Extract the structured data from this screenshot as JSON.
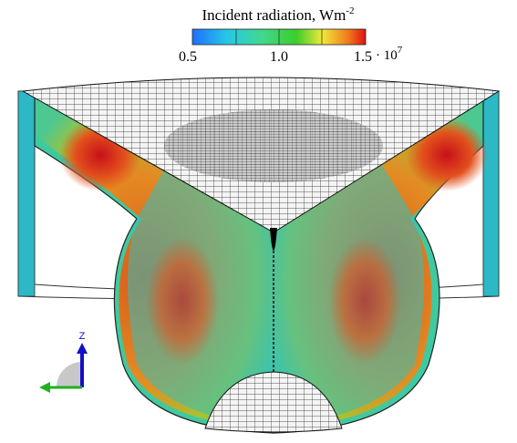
{
  "colorbar": {
    "title": "Incident radiation, Wm",
    "title_superscript": "-2",
    "ticks": [
      "0.5",
      "1.0",
      "1.5"
    ],
    "multiplier": "· 10",
    "multiplier_exponent": "7"
  },
  "axes": {
    "z_label": "Z"
  }
}
